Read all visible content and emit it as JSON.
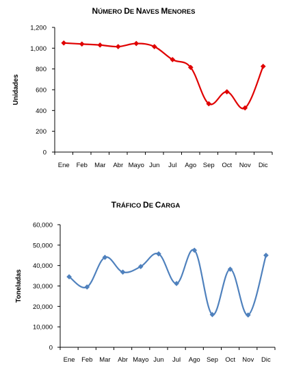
{
  "chart_data": [
    {
      "type": "line",
      "title": "Número de Naves Menores",
      "xlabel": "",
      "ylabel": "Unidades",
      "categories": [
        "Ene",
        "Feb",
        "Mar",
        "Abr",
        "Mayo",
        "Jun",
        "Jul",
        "Ago",
        "Sep",
        "Oct",
        "Nov",
        "Dic"
      ],
      "values": [
        1050,
        1040,
        1030,
        1015,
        1045,
        1015,
        890,
        815,
        465,
        580,
        425,
        825
      ],
      "ylim": [
        0,
        1200
      ],
      "yticks": [
        "0",
        "200",
        "400",
        "600",
        "800",
        "1,000",
        "1,200"
      ],
      "color": "#e00000",
      "marker": "diamond",
      "smooth": true,
      "grid": false,
      "legend": "none"
    },
    {
      "type": "line",
      "title": "Tráfico de Carga",
      "xlabel": "",
      "ylabel": "Toneladas",
      "categories": [
        "Ene",
        "Feb",
        "Mar",
        "Abr",
        "Mayo",
        "Jun",
        "Jul",
        "Ago",
        "Sep",
        "Oct",
        "Nov",
        "Dic"
      ],
      "values": [
        34500,
        29500,
        44000,
        36800,
        39500,
        45700,
        31200,
        47500,
        16000,
        38200,
        15800,
        45000
      ],
      "ylim": [
        0,
        60000
      ],
      "yticks": [
        "0",
        "10,000",
        "20,000",
        "30,000",
        "40,000",
        "50,000",
        "60,000"
      ],
      "color": "#4f81bd",
      "marker": "diamond",
      "smooth": true,
      "grid": false,
      "legend": "none"
    }
  ]
}
